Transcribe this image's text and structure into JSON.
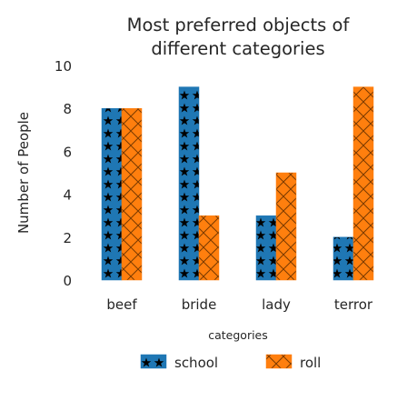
{
  "chart_data": {
    "type": "bar",
    "title_lines": [
      "Most preferred objects of",
      "different categories"
    ],
    "xlabel": "",
    "ylabel": "Number of People",
    "ylim": [
      0,
      10
    ],
    "yticks": [
      "0",
      "2",
      "4",
      "6",
      "8",
      "10"
    ],
    "categories": [
      "beef",
      "bride",
      "lady",
      "terror"
    ],
    "series": [
      {
        "name": "school",
        "values": [
          8,
          9,
          3,
          2
        ],
        "color": "#1f77b4",
        "pattern": "stars"
      },
      {
        "name": "roll",
        "values": [
          8,
          3,
          5,
          9
        ],
        "color": "#ff7f0e",
        "pattern": "crosshatch"
      }
    ],
    "grid": false,
    "legend": {
      "title": "categories",
      "placement": "bottom-center"
    }
  }
}
